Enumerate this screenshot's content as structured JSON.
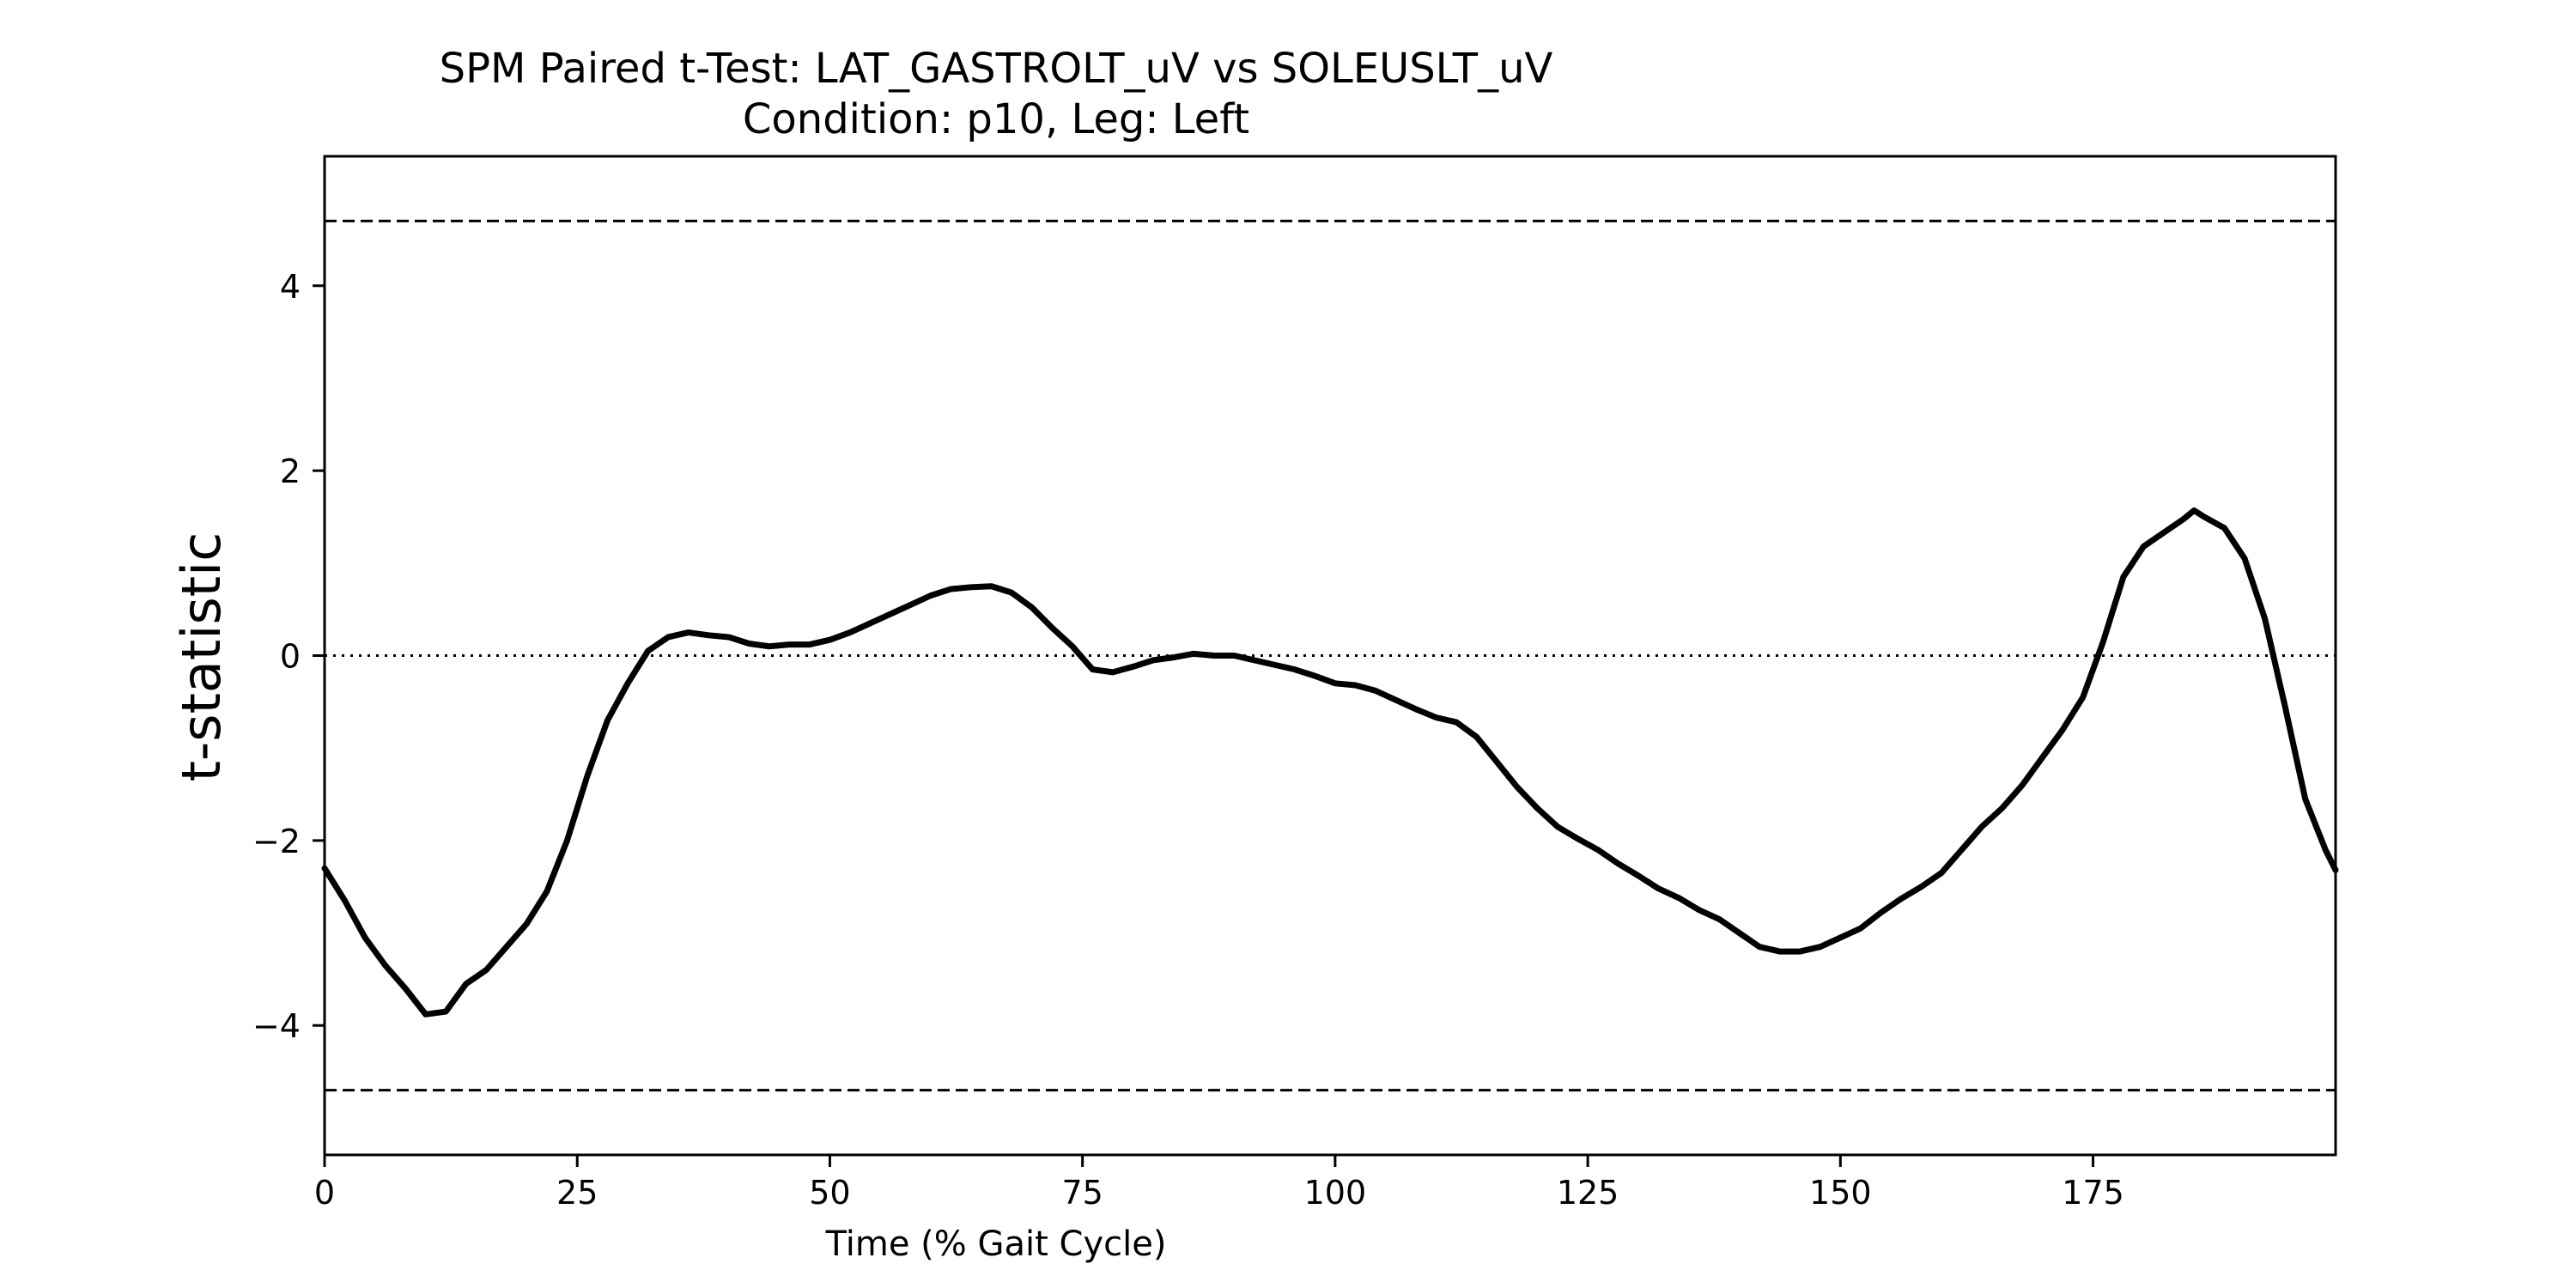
{
  "chart_data": {
    "type": "line",
    "title": "SPM Paired t-Test: LAT_GASTROLT_uV vs SOLEUSLT_uV",
    "subtitle": "Condition: p10, Leg: Left",
    "xlabel": "Time (% Gait Cycle)",
    "ylabel": "t-statistic",
    "xlim": [
      0,
      199
    ],
    "ylim": [
      -5.4,
      5.4
    ],
    "xticks": [
      0,
      25,
      50,
      75,
      100,
      125,
      150,
      175
    ],
    "xtick_labels": [
      "0",
      "25",
      "50",
      "75",
      "100",
      "125",
      "150",
      "175"
    ],
    "yticks": [
      -4,
      -2,
      0,
      2,
      4
    ],
    "ytick_labels": [
      "−4",
      "−2",
      "0",
      "2",
      "4"
    ],
    "grid": false,
    "legend": "none",
    "reference_lines": [
      {
        "kind": "critical threshold",
        "y": 4.7,
        "style": "dashed"
      },
      {
        "kind": "critical threshold",
        "y": -4.7,
        "style": "dashed"
      },
      {
        "kind": "zero",
        "y": 0,
        "style": "dotted"
      }
    ],
    "series": [
      {
        "color": "#000000",
        "x": [
          0,
          2,
          4,
          6,
          8,
          10,
          12,
          14,
          16,
          18,
          20,
          22,
          24,
          26,
          28,
          30,
          32,
          34,
          36,
          38,
          40,
          42,
          44,
          46,
          48,
          50,
          52,
          54,
          56,
          58,
          60,
          62,
          64,
          66,
          68,
          70,
          72,
          74,
          76,
          78,
          80,
          82,
          84,
          86,
          88,
          90,
          92,
          94,
          96,
          98,
          100,
          102,
          104,
          106,
          108,
          110,
          112,
          114,
          116,
          118,
          120,
          122,
          124,
          126,
          128,
          130,
          132,
          134,
          136,
          138,
          140,
          142,
          144,
          146,
          148,
          150,
          152,
          154,
          156,
          158,
          160,
          162,
          164,
          166,
          168,
          170,
          172,
          174,
          176,
          178,
          180,
          182,
          184,
          185,
          186,
          188,
          190,
          192,
          194,
          196,
          198,
          199
        ],
        "y": [
          -2.3,
          -2.65,
          -3.05,
          -3.35,
          -3.6,
          -3.88,
          -3.85,
          -3.55,
          -3.4,
          -3.15,
          -2.9,
          -2.55,
          -2.0,
          -1.3,
          -0.7,
          -0.3,
          0.05,
          0.2,
          0.25,
          0.22,
          0.2,
          0.13,
          0.1,
          0.12,
          0.12,
          0.17,
          0.25,
          0.35,
          0.45,
          0.55,
          0.65,
          0.72,
          0.74,
          0.75,
          0.68,
          0.52,
          0.3,
          0.1,
          -0.15,
          -0.18,
          -0.12,
          -0.05,
          -0.02,
          0.02,
          0.0,
          0.0,
          -0.05,
          -0.1,
          -0.15,
          -0.22,
          -0.3,
          -0.32,
          -0.38,
          -0.48,
          -0.58,
          -0.67,
          -0.72,
          -0.88,
          -1.15,
          -1.42,
          -1.65,
          -1.85,
          -1.98,
          -2.1,
          -2.25,
          -2.38,
          -2.52,
          -2.62,
          -2.75,
          -2.85,
          -3.0,
          -3.15,
          -3.2,
          -3.2,
          -3.15,
          -3.05,
          -2.95,
          -2.78,
          -2.63,
          -2.5,
          -2.35,
          -2.1,
          -1.85,
          -1.65,
          -1.4,
          -1.1,
          -0.8,
          -0.45,
          0.15,
          0.85,
          1.18,
          1.33,
          1.48,
          1.57,
          1.5,
          1.38,
          1.05,
          0.4,
          -0.55,
          -1.55,
          -2.1,
          -2.32
        ]
      }
    ]
  }
}
